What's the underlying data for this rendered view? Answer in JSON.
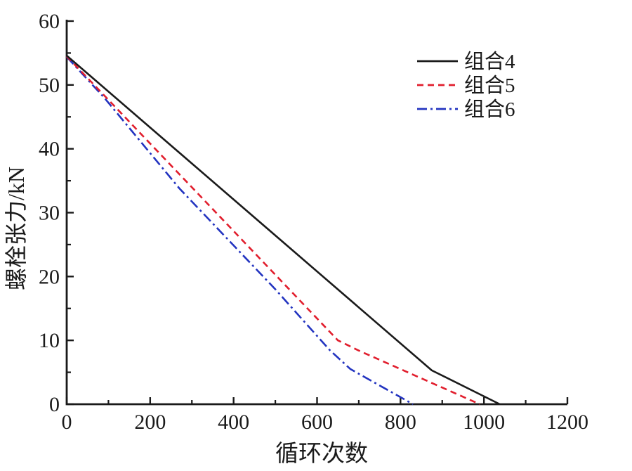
{
  "window": {
    "background": "#ffffff"
  },
  "chart_data": {
    "type": "line",
    "title": "",
    "xlabel": "循环次数",
    "ylabel": "螺栓张力/kN",
    "xlim": [
      0,
      1200
    ],
    "ylim": [
      0,
      60
    ],
    "xticks_major": [
      0,
      200,
      400,
      600,
      800,
      1000,
      1200
    ],
    "xticks_minor": [
      100,
      300,
      500,
      700,
      900,
      1100
    ],
    "yticks_major": [
      0,
      10,
      20,
      30,
      40,
      50,
      60
    ],
    "yticks_minor": [
      5,
      15,
      25,
      35,
      45,
      55
    ],
    "grid": false,
    "axis_color": "#1a1a1a",
    "legend": {
      "position": "upper-right",
      "entries": [
        "组合4",
        "组合5",
        "组合6"
      ]
    },
    "series": [
      {
        "name": "组合4",
        "color": "#1a1a1a",
        "linestyle": "solid",
        "points": [
          [
            0,
            54.6
          ],
          [
            875,
            5.3
          ],
          [
            1038,
            0
          ]
        ]
      },
      {
        "name": "组合5",
        "color": "#e11e2d",
        "linestyle": "dashed",
        "points": [
          [
            0,
            54.5
          ],
          [
            120,
            46.3
          ],
          [
            650,
            10
          ],
          [
            700,
            8.4
          ],
          [
            990,
            0
          ]
        ]
      },
      {
        "name": "组合6",
        "color": "#2334c0",
        "linestyle": "dashdot",
        "points": [
          [
            0,
            54.4
          ],
          [
            90,
            48
          ],
          [
            270,
            33.8
          ],
          [
            500,
            18
          ],
          [
            630,
            8.5
          ],
          [
            680,
            5.5
          ],
          [
            830,
            0
          ]
        ]
      }
    ]
  }
}
